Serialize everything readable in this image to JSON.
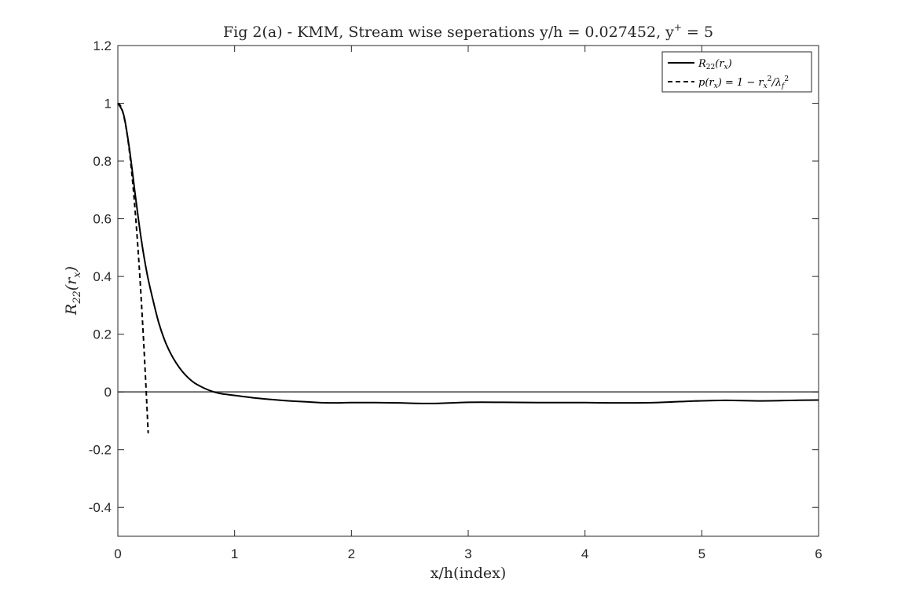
{
  "chart_data": {
    "type": "line",
    "title": "Fig 2(a) - KMM, Stream wise seperations y/h = 0.027452, y",
    "title_sup": "+",
    "title_tail": " = 5",
    "xlabel": "x/h(index)",
    "ylabel": "R",
    "ylabel_sub": "22",
    "ylabel_tail": "(r",
    "ylabel_sub2": "x",
    "ylabel_end": ")",
    "xlim": [
      0,
      6
    ],
    "ylim": [
      -0.5,
      1.2
    ],
    "xticks": [
      0,
      1,
      2,
      3,
      4,
      5,
      6
    ],
    "xtick_labels": [
      "0",
      "1",
      "2",
      "3",
      "4",
      "5",
      "6"
    ],
    "yticks": [
      -0.4,
      -0.2,
      0,
      0.2,
      0.4,
      0.6,
      0.8,
      1,
      1.2
    ],
    "ytick_labels": [
      "-0.4",
      "-0.2",
      "0",
      "0.2",
      "0.4",
      "0.6",
      "0.8",
      "1",
      "1.2"
    ],
    "grid": false,
    "zero_line": true,
    "legend_position": "top-right",
    "series": [
      {
        "name": "R22(rx)",
        "style": "solid",
        "color": "#000000",
        "x": [
          0,
          0.05,
          0.1,
          0.15,
          0.2,
          0.25,
          0.3,
          0.35,
          0.4,
          0.45,
          0.5,
          0.55,
          0.6,
          0.65,
          0.7,
          0.75,
          0.8,
          0.85,
          0.9,
          1.0,
          1.2,
          1.4,
          1.6,
          1.8,
          2.0,
          2.2,
          2.4,
          2.7,
          3.0,
          3.3,
          3.6,
          4.0,
          4.3,
          4.6,
          4.9,
          5.2,
          5.5,
          5.8,
          6.0
        ],
        "y": [
          1.0,
          0.96,
          0.84,
          0.68,
          0.53,
          0.41,
          0.32,
          0.24,
          0.18,
          0.135,
          0.1,
          0.072,
          0.05,
          0.033,
          0.021,
          0.011,
          0.003,
          -0.003,
          -0.007,
          -0.012,
          -0.022,
          -0.029,
          -0.034,
          -0.038,
          -0.037,
          -0.037,
          -0.038,
          -0.04,
          -0.036,
          -0.036,
          -0.037,
          -0.037,
          -0.038,
          -0.037,
          -0.032,
          -0.029,
          -0.031,
          -0.029,
          -0.028
        ]
      },
      {
        "name": "p(rx) = 1 - rx2/λf2",
        "style": "dashed",
        "color": "#000000",
        "x": [
          0,
          0.02,
          0.04,
          0.06,
          0.08,
          0.1,
          0.12,
          0.14,
          0.16,
          0.18,
          0.2,
          0.22,
          0.24,
          0.26
        ],
        "y": [
          1.0,
          0.9932,
          0.9729,
          0.939,
          0.8917,
          0.8307,
          0.756,
          0.668,
          0.566,
          0.452,
          0.323,
          0.181,
          0.025,
          -0.143
        ]
      }
    ],
    "legend": {
      "entry1": {
        "main": "R",
        "sub": "22",
        "rest": "(r",
        "sub2": "x",
        "end": ")"
      },
      "entry2": {
        "a": "p(r",
        "a_sub": "x",
        "b": ") = 1 − r",
        "b_sub": "x",
        "b_sup": "2",
        "c": "/λ",
        "c_sub": "f",
        "c_sup": "2"
      }
    }
  }
}
